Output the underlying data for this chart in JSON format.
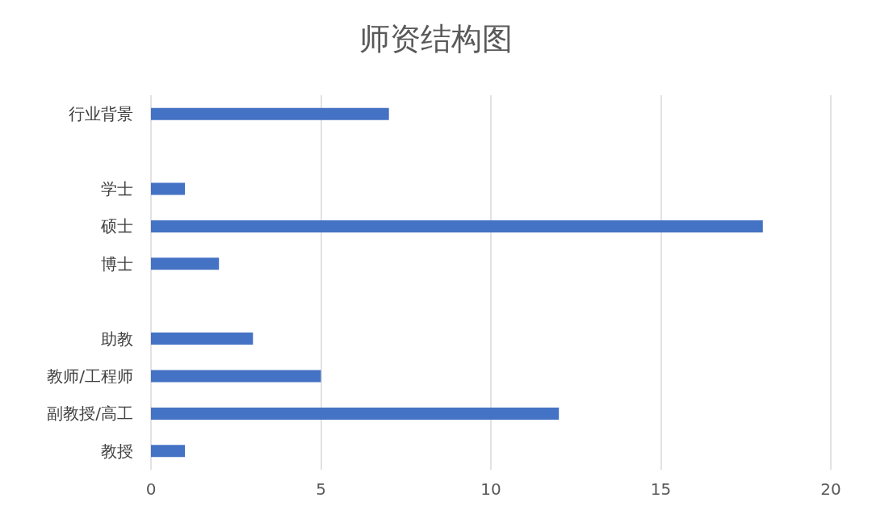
{
  "chart_data": {
    "type": "bar",
    "title": "师资结构图",
    "orientation": "horizontal",
    "categories": [
      "行业背景",
      null,
      "学士",
      "硕士",
      "博士",
      null,
      "助教",
      "教师/工程师",
      "副教授/高工",
      "教授"
    ],
    "values": [
      7,
      null,
      1,
      18,
      2,
      null,
      3,
      5,
      12,
      1
    ],
    "color": "#4472c4",
    "xlim": [
      0,
      20
    ],
    "xticks": [
      0,
      5,
      10,
      15,
      20
    ],
    "grid": "x"
  }
}
